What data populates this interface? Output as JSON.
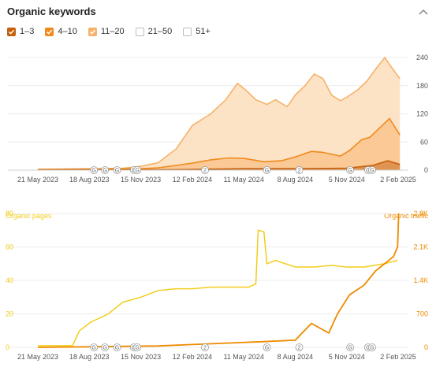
{
  "title": "Organic keywords",
  "collapse_icon": "chevron-up-icon",
  "legend": [
    {
      "label": "1–3",
      "checked": true,
      "color": "#c6600c"
    },
    {
      "label": "4–10",
      "checked": true,
      "color": "#f08a1c"
    },
    {
      "label": "11–20",
      "checked": true,
      "color": "#f6b268"
    },
    {
      "label": "21–50",
      "checked": false,
      "color": "#bdbdbd"
    },
    {
      "label": "51+",
      "checked": false,
      "color": "#bdbdbd"
    }
  ],
  "colors": {
    "series_1_3": "#c6600c",
    "series_4_10": "#f08a1c",
    "series_11_20": "#f6b268",
    "area_11_20": "#fde0c0",
    "area_4_10": "#f9c48d",
    "pages": "#f2cd1a",
    "traffic": "#ee8a00",
    "grid": "#ececec"
  },
  "markers": [
    {
      "label": "G",
      "x": "2023-08-26"
    },
    {
      "label": "G",
      "x": "2023-09-14"
    },
    {
      "label": "G",
      "x": "2023-10-05"
    },
    {
      "label": "G",
      "x": "2023-11-03"
    },
    {
      "label": "G",
      "x": "2023-11-09"
    },
    {
      "label": "2",
      "x": "2024-03-05"
    },
    {
      "label": "G",
      "x": "2024-06-20"
    },
    {
      "label": "2",
      "x": "2024-08-15"
    },
    {
      "label": "G",
      "x": "2024-11-11"
    },
    {
      "label": "G",
      "x": "2024-12-12"
    },
    {
      "label": "G",
      "x": "2024-12-19"
    }
  ],
  "chart_data": [
    {
      "type": "area",
      "title": "Organic keywords",
      "x_ticks": [
        "21 May 2023",
        "18 Aug 2023",
        "15 Nov 2023",
        "12 Feb 2024",
        "11 May 2024",
        "8 Aug 2024",
        "5 Nov 2024",
        "2 Feb 2025"
      ],
      "y_ticks": [
        "240",
        "180",
        "120",
        "60",
        "0"
      ],
      "ylim": [
        0,
        240
      ],
      "grid": true,
      "series": [
        {
          "name": "11–20",
          "color": "#f6b268",
          "stacked_total": true,
          "points": [
            [
              "2023-05-21",
              2
            ],
            [
              "2023-08-18",
              3
            ],
            [
              "2023-10-15",
              4
            ],
            [
              "2023-11-15",
              8
            ],
            [
              "2023-12-15",
              16
            ],
            [
              "2024-01-15",
              45
            ],
            [
              "2024-02-12",
              95
            ],
            [
              "2024-03-15",
              120
            ],
            [
              "2024-04-10",
              150
            ],
            [
              "2024-04-30",
              185
            ],
            [
              "2024-05-15",
              170
            ],
            [
              "2024-06-01",
              150
            ],
            [
              "2024-06-20",
              140
            ],
            [
              "2024-07-05",
              150
            ],
            [
              "2024-07-25",
              135
            ],
            [
              "2024-08-08",
              160
            ],
            [
              "2024-08-25",
              180
            ],
            [
              "2024-09-10",
              205
            ],
            [
              "2024-09-25",
              195
            ],
            [
              "2024-10-10",
              160
            ],
            [
              "2024-10-25",
              148
            ],
            [
              "2024-11-05",
              155
            ],
            [
              "2024-11-25",
              172
            ],
            [
              "2024-12-10",
              190
            ],
            [
              "2024-12-25",
              215
            ],
            [
              "2025-01-10",
              240
            ],
            [
              "2025-01-18",
              225
            ],
            [
              "2025-02-02",
              200
            ],
            [
              "2025-02-05",
              195
            ]
          ]
        },
        {
          "name": "4–10",
          "color": "#f08a1c",
          "stacked_total": true,
          "points": [
            [
              "2023-05-21",
              1
            ],
            [
              "2023-08-18",
              2
            ],
            [
              "2023-11-15",
              3
            ],
            [
              "2023-12-15",
              5
            ],
            [
              "2024-01-15",
              10
            ],
            [
              "2024-02-12",
              15
            ],
            [
              "2024-03-15",
              22
            ],
            [
              "2024-04-15",
              26
            ],
            [
              "2024-05-11",
              25
            ],
            [
              "2024-06-15",
              18
            ],
            [
              "2024-07-15",
              20
            ],
            [
              "2024-08-08",
              28
            ],
            [
              "2024-09-05",
              40
            ],
            [
              "2024-09-25",
              38
            ],
            [
              "2024-10-25",
              30
            ],
            [
              "2024-11-10",
              42
            ],
            [
              "2024-12-01",
              65
            ],
            [
              "2024-12-15",
              70
            ],
            [
              "2025-01-05",
              95
            ],
            [
              "2025-01-18",
              110
            ],
            [
              "2025-02-05",
              75
            ]
          ]
        },
        {
          "name": "1–3",
          "color": "#c6600c",
          "stacked_total": true,
          "points": [
            [
              "2023-05-21",
              0.5
            ],
            [
              "2024-01-15",
              1
            ],
            [
              "2024-05-11",
              3
            ],
            [
              "2024-08-08",
              3
            ],
            [
              "2024-11-05",
              4
            ],
            [
              "2024-12-20",
              10
            ],
            [
              "2025-01-15",
              20
            ],
            [
              "2025-02-05",
              12
            ]
          ]
        }
      ]
    },
    {
      "type": "line",
      "x_ticks": [
        "21 May 2023",
        "18 Aug 2023",
        "15 Nov 2023",
        "12 Feb 2024",
        "11 May 2024",
        "8 Aug 2024",
        "5 Nov 2024",
        "2 Feb 2025"
      ],
      "left_axis": {
        "label": "Organic pages",
        "ticks": [
          "80",
          "60",
          "40",
          "20",
          "0"
        ],
        "ylim": [
          0,
          80
        ]
      },
      "right_axis": {
        "label": "Organic traffic",
        "ticks": [
          "2.8K",
          "2.1K",
          "1.4K",
          "700",
          "0"
        ],
        "ylim": [
          0,
          2800
        ]
      },
      "grid": true,
      "series": [
        {
          "name": "Organic pages",
          "axis": "left",
          "color": "#f2cd1a",
          "points": [
            [
              "2023-05-21",
              1
            ],
            [
              "2023-07-20",
              1
            ],
            [
              "2023-08-01",
              10
            ],
            [
              "2023-08-20",
              15
            ],
            [
              "2023-09-20",
              20
            ],
            [
              "2023-10-15",
              27
            ],
            [
              "2023-11-15",
              30
            ],
            [
              "2023-12-15",
              34
            ],
            [
              "2024-01-15",
              35
            ],
            [
              "2024-02-12",
              35
            ],
            [
              "2024-03-15",
              36
            ],
            [
              "2024-04-15",
              36
            ],
            [
              "2024-05-20",
              36
            ],
            [
              "2024-06-01",
              38
            ],
            [
              "2024-06-05",
              70
            ],
            [
              "2024-06-15",
              69
            ],
            [
              "2024-06-20",
              50
            ],
            [
              "2024-07-05",
              52
            ],
            [
              "2024-08-08",
              48
            ],
            [
              "2024-09-10",
              48
            ],
            [
              "2024-10-10",
              49
            ],
            [
              "2024-11-05",
              48
            ],
            [
              "2024-12-05",
              48
            ],
            [
              "2025-01-10",
              50
            ],
            [
              "2025-02-01",
              52
            ]
          ]
        },
        {
          "name": "Organic traffic",
          "axis": "right",
          "color": "#ee8a00",
          "points": [
            [
              "2023-05-21",
              0
            ],
            [
              "2023-12-15",
              30
            ],
            [
              "2024-02-12",
              60
            ],
            [
              "2024-04-15",
              90
            ],
            [
              "2024-06-15",
              120
            ],
            [
              "2024-08-08",
              150
            ],
            [
              "2024-09-05",
              500
            ],
            [
              "2024-10-05",
              300
            ],
            [
              "2024-10-20",
              700
            ],
            [
              "2024-11-10",
              1100
            ],
            [
              "2024-12-05",
              1300
            ],
            [
              "2024-12-25",
              1600
            ],
            [
              "2025-01-15",
              1800
            ],
            [
              "2025-01-25",
              1900
            ],
            [
              "2025-02-01",
              2100
            ],
            [
              "2025-02-03",
              2800
            ]
          ]
        }
      ]
    }
  ]
}
